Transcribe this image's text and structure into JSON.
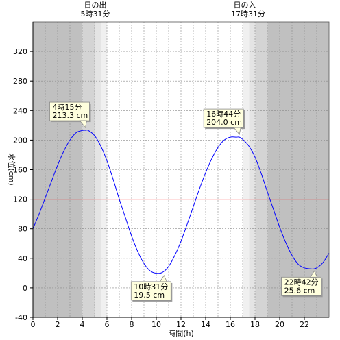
{
  "chart_data": {
    "type": "line",
    "title": "",
    "xlabel": "時間(h)",
    "ylabel": "水位(cm)",
    "xlim": [
      0,
      24
    ],
    "ylim": [
      -40,
      360
    ],
    "x_ticks": [
      0,
      2,
      4,
      6,
      8,
      10,
      12,
      14,
      16,
      18,
      20,
      22
    ],
    "y_ticks": [
      -40,
      0,
      40,
      80,
      120,
      160,
      200,
      240,
      280,
      320
    ],
    "grid": true,
    "reference_line": {
      "y": 120,
      "color": "#ff0000"
    },
    "sun": {
      "sunrise": {
        "label": "日の出",
        "time_label": "5時31分",
        "hour": 5.517
      },
      "sunset": {
        "label": "日の入",
        "time_label": "17時31分",
        "hour": 17.517
      }
    },
    "series": [
      {
        "color": "#0000ff",
        "x": [
          0,
          0.5,
          1,
          1.5,
          2,
          2.5,
          3,
          3.5,
          4,
          4.25,
          4.5,
          5,
          5.5,
          6,
          6.5,
          7,
          7.5,
          8,
          8.5,
          9,
          9.5,
          10,
          10.5,
          11,
          11.5,
          12,
          12.5,
          13,
          13.5,
          14,
          14.5,
          15,
          15.5,
          16,
          16.5,
          16.73,
          17,
          17.5,
          18,
          18.5,
          19,
          19.5,
          20,
          20.5,
          21,
          21.5,
          22,
          22.5,
          22.7,
          23,
          23.5,
          24
        ],
        "y": [
          80,
          100,
          122,
          144,
          166,
          185,
          200,
          210,
          213,
          213.3,
          213,
          206,
          192,
          172,
          147,
          120,
          95,
          70,
          49,
          33,
          23,
          19.7,
          21,
          29,
          44,
          63,
          86,
          110,
          134,
          156,
          175,
          190,
          200,
          204,
          204,
          204,
          201,
          192,
          177,
          155,
          130,
          106,
          82,
          61,
          44,
          32,
          27,
          25.8,
          25.6,
          27,
          34,
          47
        ]
      }
    ],
    "annotations": [
      {
        "time": "4時15分",
        "value": "213.3 cm",
        "x": 4.25,
        "y": 213.3,
        "position": "above"
      },
      {
        "time": "10時31分",
        "value": "19.5 cm",
        "x": 10.517,
        "y": 19.5,
        "position": "below"
      },
      {
        "time": "16時44分",
        "value": "204.0 cm",
        "x": 16.733,
        "y": 204.0,
        "position": "above"
      },
      {
        "time": "22時42分",
        "value": "25.6 cm",
        "x": 22.7,
        "y": 25.6,
        "position": "below"
      }
    ]
  },
  "colors": {
    "night": "#c0c0c0",
    "twilight_dark": "#d4d4d4",
    "twilight_mid": "#e4e4e4",
    "twilight_light": "#f0f0f0",
    "annotation_bg": "#ffffdd",
    "grid": "#888888"
  }
}
